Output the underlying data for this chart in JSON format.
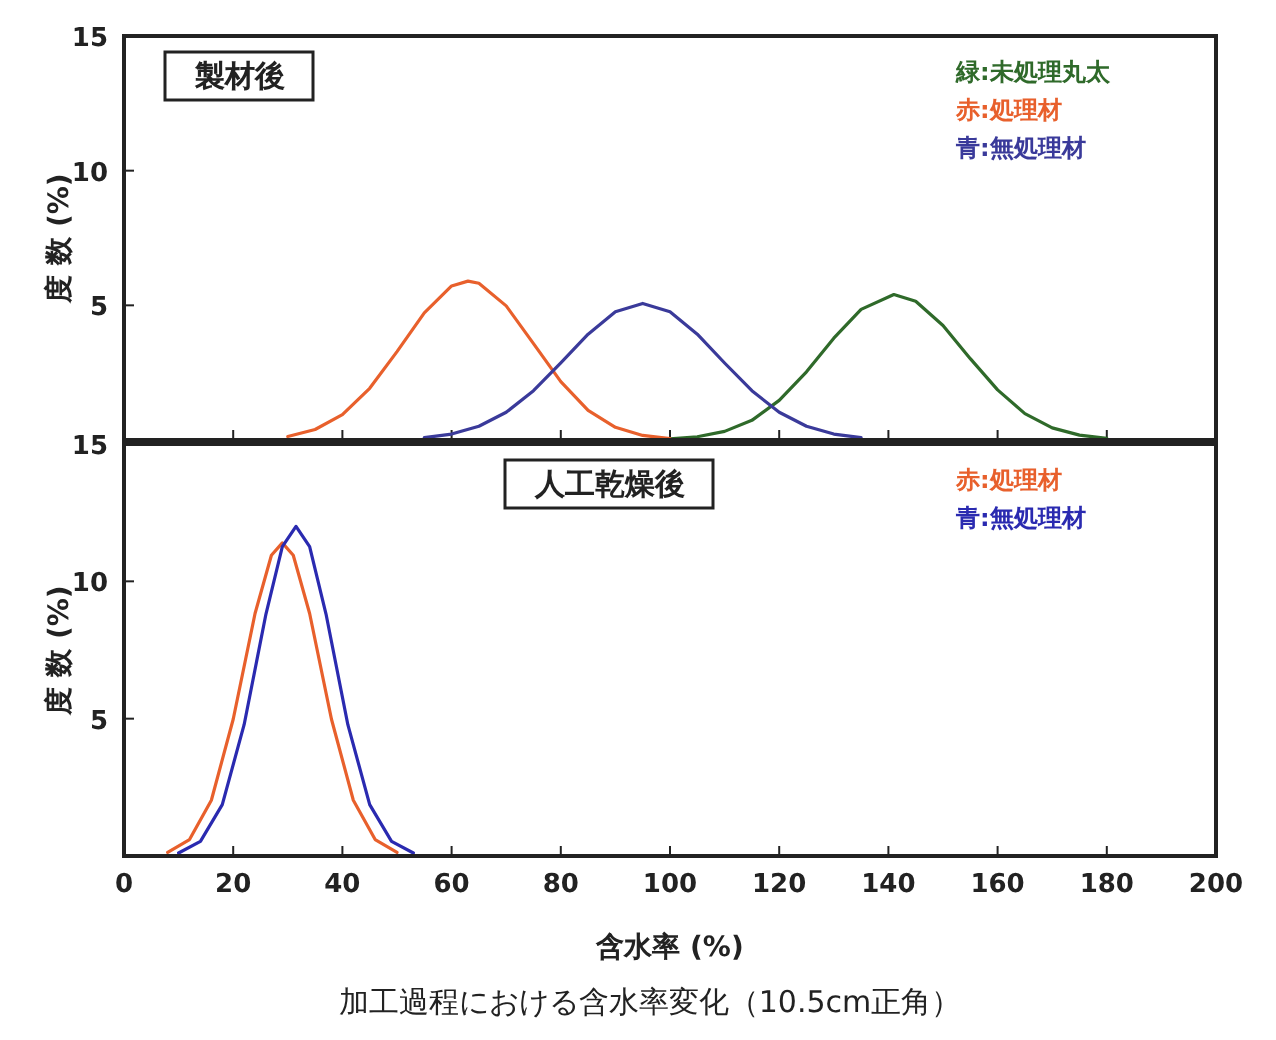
{
  "chart_data": [
    {
      "type": "line",
      "title": "製材後",
      "ylabel": "度 数 (%)",
      "xlim": [
        0,
        200
      ],
      "ylim": [
        0,
        15
      ],
      "xticks": [
        0,
        20,
        40,
        60,
        80,
        100,
        120,
        140,
        160,
        180,
        200
      ],
      "yticks": [
        5,
        10,
        15
      ],
      "tick_labels": "y",
      "legend": "top right",
      "series": [
        {
          "name": "緑:未処理丸太",
          "color": "#2f6a2a",
          "x": [
            100,
            105,
            110,
            115,
            120,
            125,
            130,
            135,
            141,
            145,
            150,
            155,
            160,
            165,
            170,
            175,
            180
          ],
          "values": [
            0.04,
            0.12,
            0.32,
            0.73,
            1.47,
            2.53,
            3.78,
            4.85,
            5.4,
            5.15,
            4.25,
            3.02,
            1.86,
            0.98,
            0.45,
            0.18,
            0.06
          ]
        },
        {
          "name": "赤:処理材",
          "color": "#e8602c",
          "x": [
            30,
            35,
            40,
            45,
            50,
            55,
            60,
            63,
            65,
            70,
            75,
            80,
            85,
            90,
            95,
            100
          ],
          "values": [
            0.13,
            0.39,
            0.94,
            1.92,
            3.28,
            4.72,
            5.72,
            5.9,
            5.82,
            4.98,
            3.58,
            2.17,
            1.1,
            0.47,
            0.17,
            0.05
          ]
        },
        {
          "name": "青:無処理材",
          "color": "#3a3a9a",
          "x": [
            55,
            60,
            65,
            70,
            75,
            80,
            85,
            90,
            95,
            100,
            105,
            110,
            115,
            120,
            125,
            130,
            135
          ],
          "values": [
            0.09,
            0.22,
            0.51,
            1.03,
            1.83,
            2.86,
            3.93,
            4.76,
            5.07,
            4.76,
            3.93,
            2.86,
            1.83,
            1.03,
            0.51,
            0.22,
            0.09
          ]
        }
      ]
    },
    {
      "type": "line",
      "title": "人工乾燥後",
      "ylabel": "度 数 (%)",
      "xlabel": "含水率 (%)",
      "annotations": [
        "加工過程における含水率変化（10.5cm正角）"
      ],
      "xlim": [
        0,
        200
      ],
      "ylim": [
        0,
        15
      ],
      "xticks": [
        0,
        20,
        40,
        60,
        80,
        100,
        120,
        140,
        160,
        180,
        200
      ],
      "yticks": [
        5,
        10,
        15
      ],
      "legend": "top right",
      "series": [
        {
          "name": "赤:処理材",
          "color": "#e8602c",
          "x": [
            8,
            12,
            16,
            20,
            24,
            27,
            29,
            31,
            34,
            38,
            42,
            46,
            50
          ],
          "values": [
            0.13,
            0.6,
            2.03,
            4.98,
            8.83,
            10.95,
            11.4,
            10.95,
            8.83,
            4.98,
            2.03,
            0.6,
            0.13
          ]
        },
        {
          "name": "青:無処理材",
          "color": "#2a2ab0",
          "x": [
            10,
            14,
            18,
            22,
            26,
            29,
            31.5,
            34,
            37,
            41,
            45,
            49,
            53
          ],
          "values": [
            0.11,
            0.53,
            1.87,
            4.78,
            8.81,
            11.26,
            12.0,
            11.26,
            8.81,
            4.78,
            1.87,
            0.53,
            0.11
          ]
        }
      ]
    }
  ]
}
